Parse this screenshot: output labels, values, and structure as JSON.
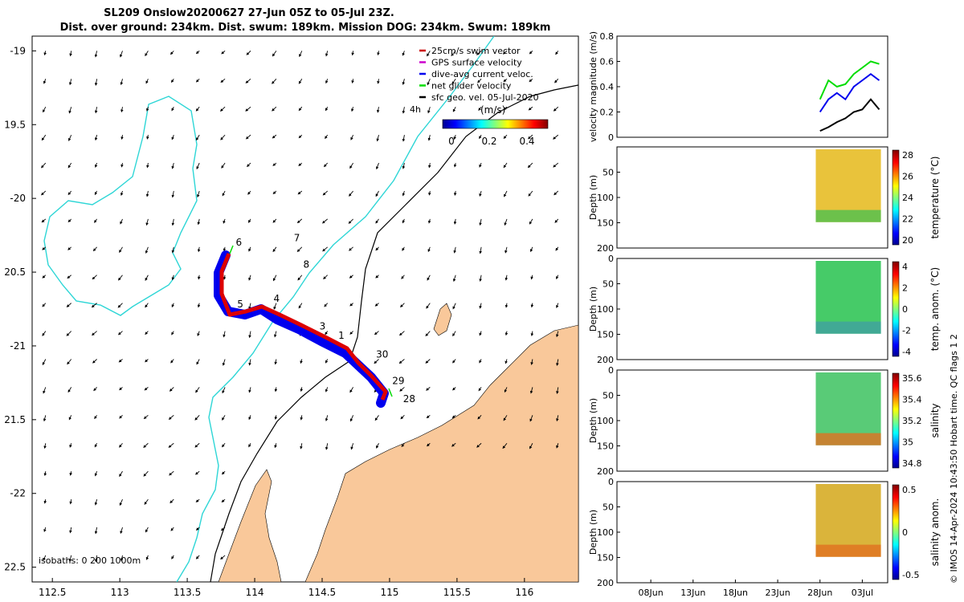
{
  "title_line1": "SL209 Onslow20200627 27-Jun 05Z to 05-Jul 23Z.",
  "title_line2": "Dist. over ground: 234km. Dist. swum: 189km. Mission DOG: 234km. Swum: 189km",
  "map": {
    "lon_ticks": [
      "112.5",
      "113",
      "113.5",
      "114",
      "114.5",
      "115",
      "115.5",
      "116"
    ],
    "lat_ticks": [
      "-19",
      "19.5",
      "-20",
      "20.5",
      "-21",
      "21.5",
      "-22",
      "22.5"
    ],
    "xlim": [
      112.35,
      116.4
    ],
    "ylim": [
      -22.6,
      -18.9
    ],
    "legend": [
      {
        "label": "25cm/s swim vector",
        "color": "#cc0000"
      },
      {
        "label": "GPS surface velocity",
        "color": "#cc00cc"
      },
      {
        "label": "dive-avg current veloc.",
        "color": "#0000ee"
      },
      {
        "label": "net glider velocity",
        "color": "#00dd00"
      },
      {
        "label": "sfc geo. vel. 05-Jul-2020",
        "color": "#000000"
      }
    ],
    "scale_label": "4h",
    "colorbar_title": "(m/s)",
    "colorbar_ticks": [
      "0",
      "0.2",
      "0.4"
    ],
    "isobaths_label": "isobaths: 0   200  1000m",
    "day_labels": [
      {
        "label": "6",
        "lon": 113.86,
        "lat": -20.32
      },
      {
        "label": "7",
        "lon": 114.29,
        "lat": -20.29
      },
      {
        "label": "8",
        "lon": 114.36,
        "lat": -20.47
      },
      {
        "label": "5",
        "lon": 113.87,
        "lat": -20.74
      },
      {
        "label": "4",
        "lon": 114.14,
        "lat": -20.7
      },
      {
        "label": "3",
        "lon": 114.48,
        "lat": -20.89
      },
      {
        "label": "1",
        "lon": 114.62,
        "lat": -20.95
      },
      {
        "label": "30",
        "lon": 114.9,
        "lat": -21.08
      },
      {
        "label": "29",
        "lon": 115.02,
        "lat": -21.26
      },
      {
        "label": "28",
        "lon": 115.1,
        "lat": -21.38
      }
    ]
  },
  "panels": [
    {
      "ylabel": "velocity magnitude (m/s)",
      "yticks": [
        "0.8",
        "0.6",
        "0.4",
        "0.2",
        "0"
      ]
    },
    {
      "ylabel": "Depth (m)",
      "yticks": [
        "50",
        "100",
        "150",
        "200"
      ],
      "cbar_label": "temperature (°C)",
      "cbar_ticks": [
        "28",
        "26",
        "24",
        "22",
        "20"
      ]
    },
    {
      "ylabel": "Depth (m)",
      "yticks": [
        "0",
        "50",
        "100",
        "150",
        "200"
      ],
      "cbar_label": "temp. anom. (°C)",
      "cbar_ticks": [
        "4",
        "2",
        "0",
        "-2",
        "-4"
      ]
    },
    {
      "ylabel": "Depth (m)",
      "yticks": [
        "0",
        "50",
        "100",
        "150",
        "200"
      ],
      "cbar_label": "salinity",
      "cbar_ticks": [
        "35.6",
        "35.4",
        "35.2",
        "35",
        "34.8"
      ]
    },
    {
      "ylabel": "Depth (m)",
      "yticks": [
        "0",
        "50",
        "100",
        "150",
        "200"
      ],
      "cbar_label": "salinity anom.",
      "cbar_ticks": [
        "0.5",
        "0",
        "-0.5"
      ]
    }
  ],
  "time_ticks": [
    "08Jun",
    "13Jun",
    "18Jun",
    "23Jun",
    "28Jun",
    "03Jul"
  ],
  "side_note": "© IMOS 14-Apr-2024 10:43:50 Hobart time. QC flags 1  2",
  "chart_data": {
    "type": "line",
    "title": "SL209 Onslow20200627 27-Jun 05Z to 05-Jul 23Z.",
    "ylabel": "velocity magnitude (m/s)",
    "ylim": [
      0,
      0.8
    ],
    "x": [
      "28Jun",
      "29Jun",
      "30Jun",
      "01Jul",
      "02Jul",
      "03Jul",
      "04Jul",
      "05Jul"
    ],
    "series": [
      {
        "name": "net glider velocity",
        "color": "#00dd00",
        "values": [
          0.3,
          0.45,
          0.4,
          0.42,
          0.5,
          0.55,
          0.6,
          0.58
        ]
      },
      {
        "name": "dive-avg current veloc.",
        "color": "#0000ee",
        "values": [
          0.2,
          0.3,
          0.35,
          0.3,
          0.4,
          0.45,
          0.5,
          0.45
        ]
      },
      {
        "name": "sfc geo. vel. 05-Jul-2020",
        "color": "#000000",
        "values": [
          0.05,
          0.08,
          0.12,
          0.15,
          0.2,
          0.22,
          0.3,
          0.22
        ]
      }
    ]
  }
}
